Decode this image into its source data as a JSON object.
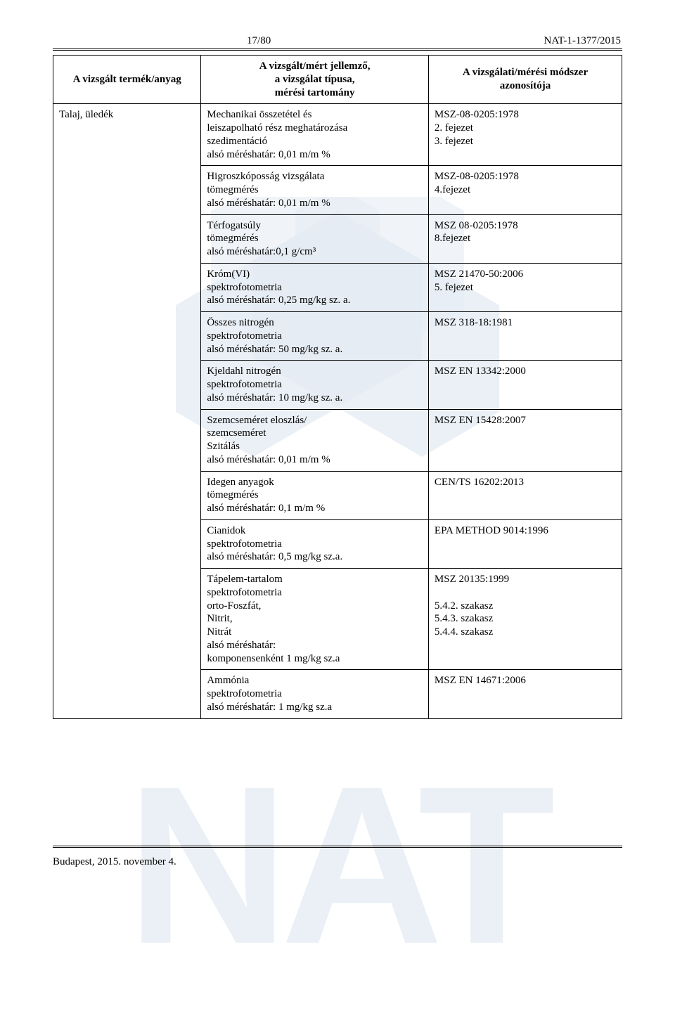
{
  "header": {
    "page_no": "17/80",
    "doc_id": "NAT-1-1377/2015"
  },
  "columns": {
    "c1": "A vizsgált termék/anyag",
    "c2a": "A vizsgált/mért jellemző,",
    "c2b": "a vizsgálat típusa,",
    "c2c": "mérési tartomány",
    "c3a": "A vizsgálati/mérési módszer",
    "c3b": "azonosítója"
  },
  "rowlabel": "Talaj, üledék",
  "rows": [
    {
      "left": "Mechanikai összetétel és\nleiszapolható rész meghatározása\nszedimentáció\nalsó méréshatár: 0,01 m/m %",
      "right": "MSZ-08-0205:1978\n2. fejezet\n3. fejezet"
    },
    {
      "left": "Higroszkóposság vizsgálata\ntömegmérés\nalsó méréshatár: 0,01 m/m %",
      "right": "MSZ-08-0205:1978\n 4.fejezet"
    },
    {
      "left": "Térfogatsúly\ntömegmérés\nalsó méréshatár:0,1 g/cm³",
      "right": "MSZ 08-0205:1978\n8.fejezet"
    },
    {
      "left": "Króm(VI)\nspektrofotometria\nalsó méréshatár: 0,25 mg/kg sz. a.",
      "right": "MSZ 21470-50:2006\n5. fejezet"
    },
    {
      "left": "Összes nitrogén\nspektrofotometria\nalsó méréshatár: 50 mg/kg sz. a.",
      "right": "MSZ 318-18:1981"
    },
    {
      "left": "Kjeldahl nitrogén\nspektrofotometria\nalsó méréshatár: 10 mg/kg sz. a.",
      "right": "MSZ EN 13342:2000"
    },
    {
      "left": "Szemcseméret eloszlás/\nszemcseméret\nSzitálás\nalsó méréshatár: 0,01 m/m %",
      "right": "MSZ EN 15428:2007"
    },
    {
      "left": "Idegen anyagok\ntömegmérés\nalsó méréshatár: 0,1 m/m %",
      "right": "CEN/TS 16202:2013"
    },
    {
      "left": "Cianidok\nspektrofotometria\nalsó méréshatár: 0,5 mg/kg sz.a.",
      "right": "EPA METHOD 9014:1996"
    },
    {
      "left": "Tápelem-tartalom\nspektrofotometria\norto-Foszfát,\nNitrit,\nNitrát\nalsó méréshatár:\n komponensenként 1 mg/kg sz.a",
      "right": "MSZ 20135:1999\n\n5.4.2. szakasz\n5.4.3. szakasz\n5.4.4. szakasz"
    },
    {
      "left": "Ammónia\nspektrofotometria\nalsó méréshatár: 1 mg/kg sz.a",
      "right": "MSZ EN 14671:2006"
    }
  ],
  "footer": "Budapest, 2015. november 4.",
  "style": {
    "watermark_color": "#c7d6e6",
    "watermark_dark": "#95b4cf"
  }
}
